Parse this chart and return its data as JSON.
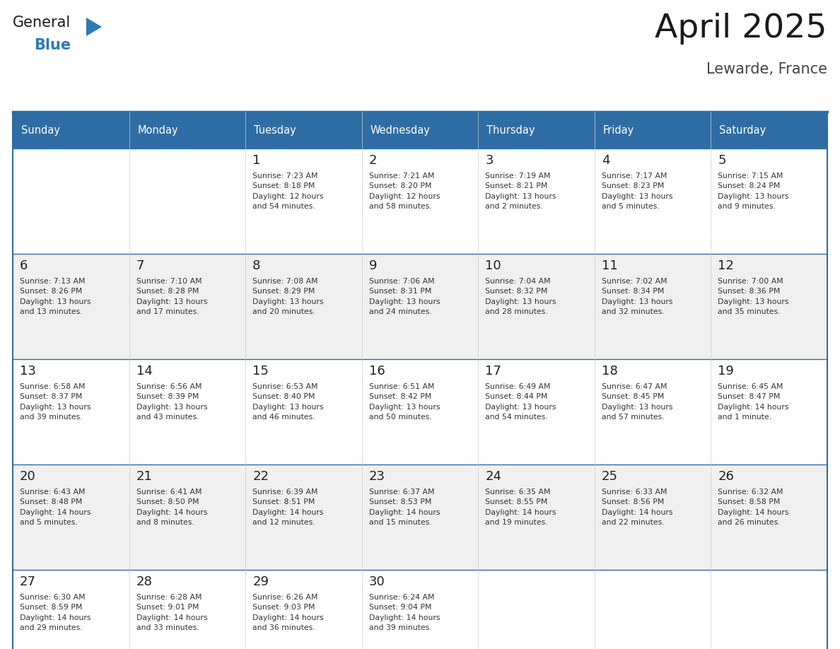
{
  "title": "April 2025",
  "subtitle": "Lewarde, France",
  "header_bg": "#2E6DA4",
  "header_text_color": "#FFFFFF",
  "cell_bg_white": "#FFFFFF",
  "cell_bg_gray": "#F0F0F0",
  "border_color": "#2E6DA4",
  "text_color": "#333333",
  "day_number_color": "#222222",
  "title_color": "#1a1a1a",
  "subtitle_color": "#444444",
  "logo_text_color": "#1a1a1a",
  "logo_blue_color": "#2E79B5",
  "day_names": [
    "Sunday",
    "Monday",
    "Tuesday",
    "Wednesday",
    "Thursday",
    "Friday",
    "Saturday"
  ],
  "calendar": [
    [
      {
        "day": null,
        "text": ""
      },
      {
        "day": null,
        "text": ""
      },
      {
        "day": 1,
        "text": "Sunrise: 7:23 AM\nSunset: 8:18 PM\nDaylight: 12 hours\nand 54 minutes."
      },
      {
        "day": 2,
        "text": "Sunrise: 7:21 AM\nSunset: 8:20 PM\nDaylight: 12 hours\nand 58 minutes."
      },
      {
        "day": 3,
        "text": "Sunrise: 7:19 AM\nSunset: 8:21 PM\nDaylight: 13 hours\nand 2 minutes."
      },
      {
        "day": 4,
        "text": "Sunrise: 7:17 AM\nSunset: 8:23 PM\nDaylight: 13 hours\nand 5 minutes."
      },
      {
        "day": 5,
        "text": "Sunrise: 7:15 AM\nSunset: 8:24 PM\nDaylight: 13 hours\nand 9 minutes."
      }
    ],
    [
      {
        "day": 6,
        "text": "Sunrise: 7:13 AM\nSunset: 8:26 PM\nDaylight: 13 hours\nand 13 minutes."
      },
      {
        "day": 7,
        "text": "Sunrise: 7:10 AM\nSunset: 8:28 PM\nDaylight: 13 hours\nand 17 minutes."
      },
      {
        "day": 8,
        "text": "Sunrise: 7:08 AM\nSunset: 8:29 PM\nDaylight: 13 hours\nand 20 minutes."
      },
      {
        "day": 9,
        "text": "Sunrise: 7:06 AM\nSunset: 8:31 PM\nDaylight: 13 hours\nand 24 minutes."
      },
      {
        "day": 10,
        "text": "Sunrise: 7:04 AM\nSunset: 8:32 PM\nDaylight: 13 hours\nand 28 minutes."
      },
      {
        "day": 11,
        "text": "Sunrise: 7:02 AM\nSunset: 8:34 PM\nDaylight: 13 hours\nand 32 minutes."
      },
      {
        "day": 12,
        "text": "Sunrise: 7:00 AM\nSunset: 8:36 PM\nDaylight: 13 hours\nand 35 minutes."
      }
    ],
    [
      {
        "day": 13,
        "text": "Sunrise: 6:58 AM\nSunset: 8:37 PM\nDaylight: 13 hours\nand 39 minutes."
      },
      {
        "day": 14,
        "text": "Sunrise: 6:56 AM\nSunset: 8:39 PM\nDaylight: 13 hours\nand 43 minutes."
      },
      {
        "day": 15,
        "text": "Sunrise: 6:53 AM\nSunset: 8:40 PM\nDaylight: 13 hours\nand 46 minutes."
      },
      {
        "day": 16,
        "text": "Sunrise: 6:51 AM\nSunset: 8:42 PM\nDaylight: 13 hours\nand 50 minutes."
      },
      {
        "day": 17,
        "text": "Sunrise: 6:49 AM\nSunset: 8:44 PM\nDaylight: 13 hours\nand 54 minutes."
      },
      {
        "day": 18,
        "text": "Sunrise: 6:47 AM\nSunset: 8:45 PM\nDaylight: 13 hours\nand 57 minutes."
      },
      {
        "day": 19,
        "text": "Sunrise: 6:45 AM\nSunset: 8:47 PM\nDaylight: 14 hours\nand 1 minute."
      }
    ],
    [
      {
        "day": 20,
        "text": "Sunrise: 6:43 AM\nSunset: 8:48 PM\nDaylight: 14 hours\nand 5 minutes."
      },
      {
        "day": 21,
        "text": "Sunrise: 6:41 AM\nSunset: 8:50 PM\nDaylight: 14 hours\nand 8 minutes."
      },
      {
        "day": 22,
        "text": "Sunrise: 6:39 AM\nSunset: 8:51 PM\nDaylight: 14 hours\nand 12 minutes."
      },
      {
        "day": 23,
        "text": "Sunrise: 6:37 AM\nSunset: 8:53 PM\nDaylight: 14 hours\nand 15 minutes."
      },
      {
        "day": 24,
        "text": "Sunrise: 6:35 AM\nSunset: 8:55 PM\nDaylight: 14 hours\nand 19 minutes."
      },
      {
        "day": 25,
        "text": "Sunrise: 6:33 AM\nSunset: 8:56 PM\nDaylight: 14 hours\nand 22 minutes."
      },
      {
        "day": 26,
        "text": "Sunrise: 6:32 AM\nSunset: 8:58 PM\nDaylight: 14 hours\nand 26 minutes."
      }
    ],
    [
      {
        "day": 27,
        "text": "Sunrise: 6:30 AM\nSunset: 8:59 PM\nDaylight: 14 hours\nand 29 minutes."
      },
      {
        "day": 28,
        "text": "Sunrise: 6:28 AM\nSunset: 9:01 PM\nDaylight: 14 hours\nand 33 minutes."
      },
      {
        "day": 29,
        "text": "Sunrise: 6:26 AM\nSunset: 9:03 PM\nDaylight: 14 hours\nand 36 minutes."
      },
      {
        "day": 30,
        "text": "Sunrise: 6:24 AM\nSunset: 9:04 PM\nDaylight: 14 hours\nand 39 minutes."
      },
      {
        "day": null,
        "text": ""
      },
      {
        "day": null,
        "text": ""
      },
      {
        "day": null,
        "text": ""
      }
    ]
  ]
}
